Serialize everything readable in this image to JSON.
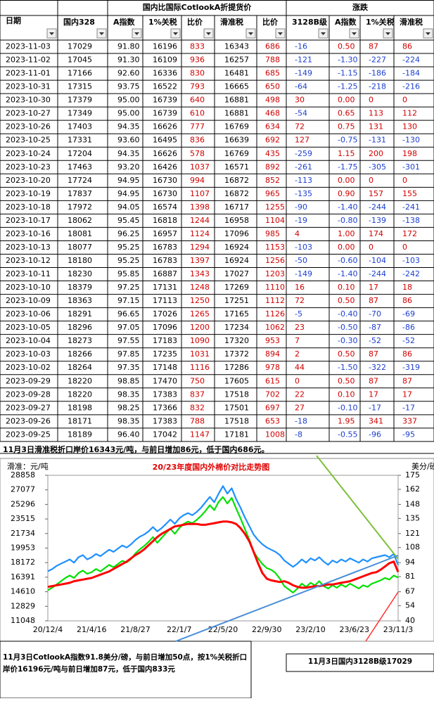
{
  "table": {
    "group_headers": [
      "国内比国际CotlookA折提货价",
      "涨跌"
    ],
    "columns": [
      "日期",
      "国内328",
      "A指数",
      "1%关税",
      "比价",
      "滑准税",
      "比价",
      "3128B级",
      "A指数",
      "1%关税",
      "滑准税"
    ],
    "rows": [
      [
        "2023-11-03",
        "17029",
        "91.80",
        "16196",
        "833",
        "16343",
        "686",
        "-16",
        "0.50",
        "87",
        "86"
      ],
      [
        "2023-11-02",
        "17045",
        "91.30",
        "16109",
        "936",
        "16257",
        "788",
        "-121",
        "-1.30",
        "-227",
        "-224"
      ],
      [
        "2023-11-01",
        "17166",
        "92.60",
        "16336",
        "830",
        "16481",
        "685",
        "-149",
        "-1.15",
        "-186",
        "-184"
      ],
      [
        "2023-10-31",
        "17315",
        "93.75",
        "16522",
        "793",
        "16665",
        "650",
        "-64",
        "-1.25",
        "-218",
        "-216"
      ],
      [
        "2023-10-30",
        "17379",
        "95.00",
        "16739",
        "640",
        "16881",
        "498",
        "30",
        "0.00",
        "0",
        "0"
      ],
      [
        "2023-10-27",
        "17349",
        "95.00",
        "16739",
        "610",
        "16881",
        "468",
        "-54",
        "0.65",
        "113",
        "112"
      ],
      [
        "2023-10-26",
        "17403",
        "94.35",
        "16626",
        "777",
        "16769",
        "634",
        "72",
        "0.75",
        "131",
        "130"
      ],
      [
        "2023-10-25",
        "17331",
        "93.60",
        "16495",
        "836",
        "16639",
        "692",
        "127",
        "-0.75",
        "-131",
        "-130"
      ],
      [
        "2023-10-24",
        "17204",
        "94.35",
        "16626",
        "578",
        "16769",
        "435",
        "-259",
        "1.15",
        "200",
        "198"
      ],
      [
        "2023-10-23",
        "17463",
        "93.20",
        "16426",
        "1037",
        "16571",
        "892",
        "-261",
        "-1.75",
        "-305",
        "-301"
      ],
      [
        "2023-10-20",
        "17724",
        "94.95",
        "16730",
        "994",
        "16872",
        "852",
        "-113",
        "0.00",
        "0",
        "0"
      ],
      [
        "2023-10-19",
        "17837",
        "94.95",
        "16730",
        "1107",
        "16872",
        "965",
        "-135",
        "0.90",
        "157",
        "155"
      ],
      [
        "2023-10-18",
        "17972",
        "94.05",
        "16574",
        "1398",
        "16717",
        "1255",
        "-90",
        "-1.40",
        "-244",
        "-241"
      ],
      [
        "2023-10-17",
        "18062",
        "95.45",
        "16818",
        "1244",
        "16958",
        "1104",
        "-19",
        "-0.80",
        "-139",
        "-138"
      ],
      [
        "2023-10-16",
        "18081",
        "96.25",
        "16957",
        "1124",
        "17096",
        "985",
        "4",
        "1.00",
        "174",
        "172"
      ],
      [
        "2023-10-13",
        "18077",
        "95.25",
        "16783",
        "1294",
        "16924",
        "1153",
        "-103",
        "0.00",
        "0",
        "0"
      ],
      [
        "2023-10-12",
        "18180",
        "95.25",
        "16783",
        "1397",
        "16924",
        "1256",
        "-50",
        "-0.60",
        "-104",
        "-103"
      ],
      [
        "2023-10-11",
        "18230",
        "95.85",
        "16887",
        "1343",
        "17027",
        "1203",
        "-149",
        "-1.40",
        "-244",
        "-242"
      ],
      [
        "2023-10-10",
        "18379",
        "97.25",
        "17131",
        "1248",
        "17269",
        "1110",
        "16",
        "0.10",
        "17",
        "18"
      ],
      [
        "2023-10-09",
        "18363",
        "97.15",
        "17113",
        "1250",
        "17251",
        "1112",
        "72",
        "0.50",
        "87",
        "86"
      ],
      [
        "2023-10-06",
        "18291",
        "96.65",
        "17026",
        "1265",
        "17165",
        "1126",
        "-5",
        "-0.40",
        "-70",
        "-69"
      ],
      [
        "2023-10-05",
        "18296",
        "97.05",
        "17096",
        "1200",
        "17234",
        "1062",
        "23",
        "-0.50",
        "-87",
        "-86"
      ],
      [
        "2023-10-04",
        "18273",
        "97.55",
        "17183",
        "1090",
        "17320",
        "953",
        "7",
        "-0.30",
        "-52",
        "-52"
      ],
      [
        "2023-10-03",
        "18266",
        "97.85",
        "17235",
        "1031",
        "17372",
        "894",
        "2",
        "0.50",
        "87",
        "86"
      ],
      [
        "2023-10-02",
        "18264",
        "97.35",
        "17148",
        "1116",
        "17286",
        "978",
        "44",
        "-1.50",
        "-322",
        "-319"
      ],
      [
        "2023-09-29",
        "18220",
        "98.85",
        "17470",
        "750",
        "17605",
        "615",
        "0",
        "0.50",
        "87",
        "87"
      ],
      [
        "2023-09-28",
        "18220",
        "98.35",
        "17383",
        "837",
        "17518",
        "702",
        "22",
        "0.10",
        "17",
        "17"
      ],
      [
        "2023-09-27",
        "18198",
        "98.25",
        "17366",
        "832",
        "17501",
        "697",
        "27",
        "-0.10",
        "-17",
        "-17"
      ],
      [
        "2023-09-26",
        "18171",
        "98.35",
        "17383",
        "788",
        "17518",
        "653",
        "-18",
        "1.95",
        "341",
        "337"
      ],
      [
        "2023-09-25",
        "18189",
        "96.40",
        "17042",
        "1147",
        "17181",
        "1008",
        "-8",
        "-0.55",
        "-96",
        "-95"
      ]
    ]
  },
  "note": "11月3日滑准税折口岸价16343元/吨，与前日增加86元，低于国内686元。",
  "chart_data": {
    "type": "line",
    "title": "20/23年度国内外棉价对比走势图",
    "y_label": "滑准：元/吨",
    "y2_label": "美分/磅",
    "categories": [
      "20/12/4",
      null,
      null,
      null,
      null,
      null,
      null,
      null,
      null,
      null,
      "21/4/16",
      null,
      null,
      null,
      null,
      null,
      null,
      null,
      null,
      null,
      "21/8/27",
      null,
      null,
      null,
      null,
      null,
      null,
      null,
      null,
      null,
      "22/1/7",
      null,
      null,
      null,
      null,
      null,
      null,
      null,
      null,
      null,
      "22/5/20",
      null,
      null,
      null,
      null,
      null,
      null,
      null,
      null,
      null,
      "22/9/30",
      null,
      null,
      null,
      null,
      null,
      null,
      null,
      null,
      null,
      "23/2/10",
      null,
      null,
      null,
      null,
      null,
      null,
      null,
      null,
      null,
      "23/6/23",
      null,
      null,
      null,
      null,
      null,
      null,
      null,
      null,
      null,
      "23/11/3"
    ],
    "ylim": [
      11048,
      28858
    ],
    "yticks": [
      11048,
      12829,
      14610,
      16391,
      18172,
      19953,
      21734,
      23515,
      25296,
      27077,
      28858
    ],
    "y2lim": [
      40,
      175
    ],
    "y2ticks": [
      40,
      54,
      67,
      81,
      94,
      108,
      121,
      135,
      148,
      162,
      175
    ],
    "grid": false,
    "series": [
      {
        "color": "#00e000",
        "values": [
          14800,
          15100,
          15500,
          15900,
          16300,
          16600,
          16300,
          16900,
          17200,
          16800,
          17000,
          17400,
          17100,
          17500,
          17900,
          17600,
          18000,
          18400,
          18200,
          18600,
          19300,
          19800,
          20200,
          20700,
          21300,
          20600,
          21200,
          21800,
          22300,
          21700,
          22400,
          22900,
          23200,
          23000,
          23400,
          23900,
          24500,
          25200,
          24600,
          25600,
          26200,
          25400,
          26100,
          24800,
          23600,
          22300,
          21000,
          19500,
          18700,
          18000,
          17500,
          17300,
          16900,
          16200,
          15300,
          14900,
          14500,
          15000,
          15600,
          15200,
          15700,
          15400,
          15900,
          15300,
          15000,
          15400,
          15100,
          15500,
          15200,
          15600,
          15300,
          15000,
          15400,
          15200,
          15600,
          15800,
          16000,
          16300,
          16100,
          16600,
          16343
        ]
      },
      {
        "color": "#1e90ff",
        "axis": "y2",
        "values": [
          86,
          88,
          91,
          93,
          95,
          97,
          94,
          99,
          101,
          97,
          99,
          102,
          100,
          103,
          106,
          104,
          107,
          110,
          108,
          111,
          115,
          118,
          120,
          123,
          127,
          123,
          126,
          130,
          134,
          130,
          135,
          138,
          140,
          138,
          141,
          145,
          150,
          155,
          150,
          158,
          165,
          158,
          163,
          153,
          145,
          136,
          128,
          120,
          115,
          111,
          108,
          106,
          104,
          101,
          96,
          93,
          90,
          93,
          97,
          94,
          98,
          96,
          99,
          95,
          92,
          96,
          94,
          97,
          95,
          98,
          96,
          94,
          97,
          95,
          98,
          99,
          100,
          101,
          99,
          102,
          91.8
        ]
      },
      {
        "color": "#ff0000",
        "values": [
          15200,
          15300,
          15400,
          15500,
          15600,
          15700,
          15900,
          16000,
          16100,
          16200,
          16300,
          16500,
          16700,
          16900,
          17100,
          17400,
          17700,
          18000,
          18300,
          18700,
          19100,
          19400,
          19800,
          20300,
          20800,
          21300,
          21700,
          22000,
          22300,
          22600,
          22700,
          22800,
          22900,
          22900,
          22900,
          22800,
          22800,
          22900,
          23000,
          23100,
          23200,
          23200,
          23100,
          22900,
          22400,
          21700,
          20800,
          19500,
          18100,
          16900,
          16200,
          16000,
          15900,
          15800,
          15900,
          15700,
          15400,
          15200,
          15100,
          15100,
          15200,
          15300,
          15300,
          15400,
          15500,
          15500,
          15600,
          15700,
          15800,
          15900,
          16100,
          16300,
          16500,
          16700,
          16900,
          17000,
          17300,
          17700,
          18100,
          18300,
          17029
        ]
      }
    ]
  },
  "footer": {
    "left": "11月3日CotlookA指数91.8美分/磅，与前日增加50点，按1%关税折口岸价16196元/吨与前日增加87元，低于国内833元",
    "right": "11月3日国内3128B级17029"
  }
}
